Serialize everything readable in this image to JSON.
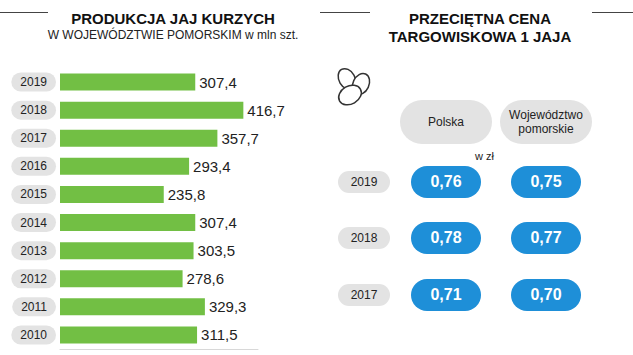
{
  "chart_data": {
    "type": "bar",
    "orientation": "horizontal",
    "title": "PRODUKCJA JAJ KURZYCH",
    "subtitle": "W WOJEWÓDZTWIE POMORSKIM w mln szt.",
    "categories": [
      "2019",
      "2018",
      "2017",
      "2016",
      "2015",
      "2014",
      "2013",
      "2012",
      "2011",
      "2010"
    ],
    "values": [
      307.4,
      416.7,
      357.7,
      293.4,
      235.8,
      307.4,
      303.5,
      278.6,
      329.3,
      311.5
    ],
    "value_labels": [
      "307,4",
      "416,7",
      "357,7",
      "293,4",
      "235,8",
      "307,4",
      "303,5",
      "278,6",
      "329,3",
      "311,5"
    ],
    "color": "#72bf44",
    "data_labels": true,
    "tick_labels": "y",
    "xlim": [
      0,
      450
    ]
  },
  "price_table": {
    "title": "PRZECIĘTNA CENA\nTARGOWISKOWA 1 JAJA",
    "unit": "w zł",
    "columns": [
      "Polska",
      "Województwo pomorskie"
    ],
    "rows": [
      {
        "year": "2019",
        "values": [
          "0,76",
          "0,75"
        ]
      },
      {
        "year": "2018",
        "values": [
          "0,78",
          "0,77"
        ]
      },
      {
        "year": "2017",
        "values": [
          "0,71",
          "0,70"
        ]
      }
    ]
  }
}
